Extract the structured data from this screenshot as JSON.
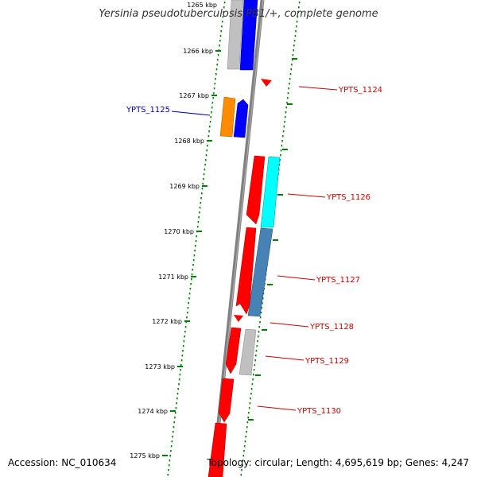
{
  "title": "Yersinia pseudotuberculosis PB1/+, complete genome",
  "footer": {
    "accession": "Accession: NC_010634",
    "stats": "Topology: circular; Length: 4,695,619 bp; Genes: 4,247"
  },
  "colors": {
    "backbone": "#808080",
    "tick": "#008000",
    "forward_label": "#cc0000",
    "reverse_label": "#0000aa",
    "red": "#ff0000",
    "blue": "#0000ff",
    "orange": "#ff8c00",
    "gray": "#c0c0c0",
    "cyan": "#00ffff",
    "steelblue": "#4682b4"
  },
  "axis": {
    "unit": "kbp",
    "labels": [
      "1265 kbp",
      "1266 kbp",
      "1267 kbp",
      "1268 kbp",
      "1269 kbp",
      "1270 kbp",
      "1271 kbp",
      "1272 kbp",
      "1273 kbp",
      "1274 kbp",
      "1275 kbp"
    ]
  },
  "gene_labels": [
    {
      "text": "YPTS_1124",
      "strand": "forward"
    },
    {
      "text": "YPTS_1125",
      "strand": "reverse"
    },
    {
      "text": "YPTS_1126",
      "strand": "forward"
    },
    {
      "text": "YPTS_1127",
      "strand": "forward"
    },
    {
      "text": "YPTS_1128",
      "strand": "forward"
    },
    {
      "text": "YPTS_1129",
      "strand": "forward"
    },
    {
      "text": "YPTS_1130",
      "strand": "forward"
    }
  ]
}
